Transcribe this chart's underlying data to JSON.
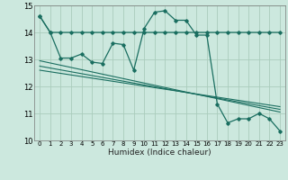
{
  "xlabel": "Humidex (Indice chaleur)",
  "background_color": "#cce8de",
  "grid_color": "#aaccbc",
  "line_color": "#1a6e60",
  "xlim": [
    -0.5,
    23.5
  ],
  "ylim": [
    10,
    15
  ],
  "yticks": [
    10,
    11,
    12,
    13,
    14,
    15
  ],
  "xticks": [
    0,
    1,
    2,
    3,
    4,
    5,
    6,
    7,
    8,
    9,
    10,
    11,
    12,
    13,
    14,
    15,
    16,
    17,
    18,
    19,
    20,
    21,
    22,
    23
  ],
  "series_flat_x": [
    0,
    1,
    2,
    3,
    4,
    5,
    6,
    7,
    8,
    9,
    10,
    11,
    12,
    13,
    14,
    15,
    16,
    17,
    18,
    19,
    20,
    21,
    22,
    23
  ],
  "series_flat_y": [
    14.6,
    14.0,
    14.0,
    14.0,
    14.0,
    14.0,
    14.0,
    14.0,
    14.0,
    14.0,
    14.0,
    14.0,
    14.0,
    14.0,
    14.0,
    14.0,
    14.0,
    14.0,
    14.0,
    14.0,
    14.0,
    14.0,
    14.0,
    14.0
  ],
  "series_main_x": [
    0,
    1,
    2,
    3,
    4,
    5,
    6,
    7,
    8,
    9,
    10,
    11,
    12,
    13,
    14,
    15,
    16,
    17,
    18,
    19,
    20,
    21,
    22,
    23
  ],
  "series_main_y": [
    14.6,
    14.0,
    13.05,
    13.05,
    13.2,
    12.9,
    12.85,
    13.6,
    13.55,
    12.6,
    14.15,
    14.75,
    14.8,
    14.45,
    14.45,
    13.9,
    13.9,
    11.35,
    10.65,
    10.8,
    10.8,
    11.0,
    10.8,
    10.35
  ],
  "trend1_x": [
    0,
    23
  ],
  "trend1_y": [
    12.95,
    11.05
  ],
  "trend2_x": [
    0,
    23
  ],
  "trend2_y": [
    12.75,
    11.15
  ],
  "trend3_x": [
    0,
    23
  ],
  "trend3_y": [
    12.6,
    11.25
  ]
}
